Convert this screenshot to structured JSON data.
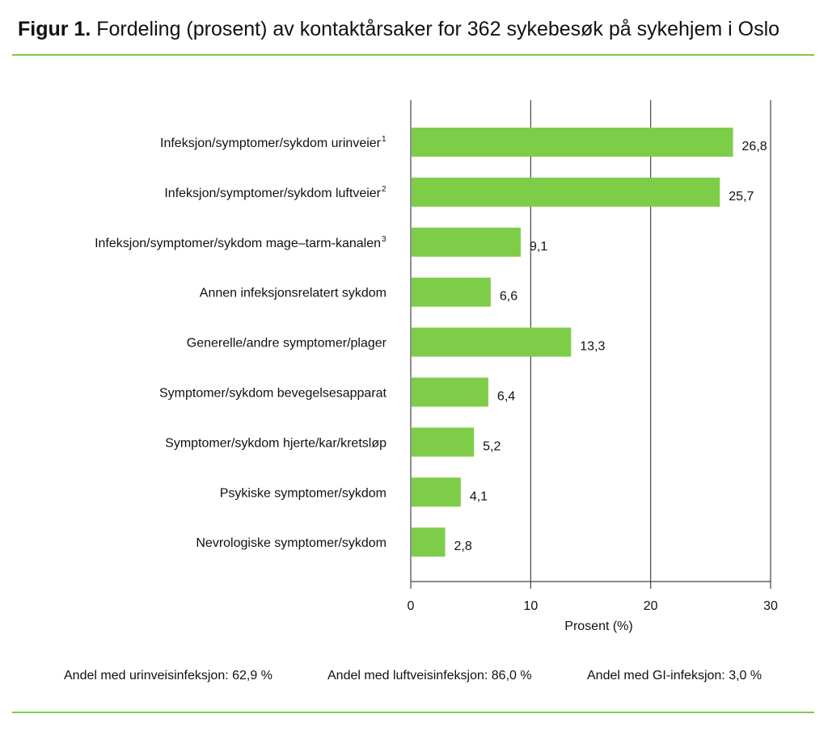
{
  "title": {
    "prefix": "Figur 1.",
    "text": "Fordeling (prosent) av kontaktårsaker for 362 sykebesøk på sykehjem i Oslo"
  },
  "colors": {
    "bar": "#7ecd48",
    "rule": "#7ccc4a",
    "grid": "#444444"
  },
  "chart_data": {
    "type": "bar",
    "orientation": "horizontal",
    "categories": [
      {
        "label": "Infeksjon/symptomer/sykdom urinveier",
        "sup": "1"
      },
      {
        "label": "Infeksjon/symptomer/sykdom luftveier",
        "sup": "2"
      },
      {
        "label": "Infeksjon/symptomer/sykdom mage–tarm-kanalen",
        "sup": "3"
      },
      {
        "label": "Annen infeksjonsrelatert sykdom",
        "sup": ""
      },
      {
        "label": "Generelle/andre symptomer/plager",
        "sup": ""
      },
      {
        "label": "Symptomer/sykdom bevegelsesapparat",
        "sup": ""
      },
      {
        "label": "Symptomer/sykdom hjerte/kar/kretsløp",
        "sup": ""
      },
      {
        "label": "Psykiske symptomer/sykdom",
        "sup": ""
      },
      {
        "label": "Nevrologiske symptomer/sykdom",
        "sup": ""
      }
    ],
    "values": [
      26.8,
      25.7,
      9.1,
      6.6,
      13.3,
      6.4,
      5.2,
      4.1,
      2.8
    ],
    "data_labels": [
      "26,8",
      "25,7",
      "9,1",
      "6,6",
      "13,3",
      "6,4",
      "5,2",
      "4,1",
      "2,8"
    ],
    "xlabel": "Prosent (%)",
    "xlim": [
      0,
      30
    ],
    "xticks": [
      0,
      10,
      20,
      30
    ],
    "grid": "vertical"
  },
  "notes": [
    "Andel med urinveisinfeksjon: 62,9 %",
    "Andel med luftveisinfeksjon: 86,0 %",
    "Andel med GI-infeksjon: 3,0 %"
  ]
}
